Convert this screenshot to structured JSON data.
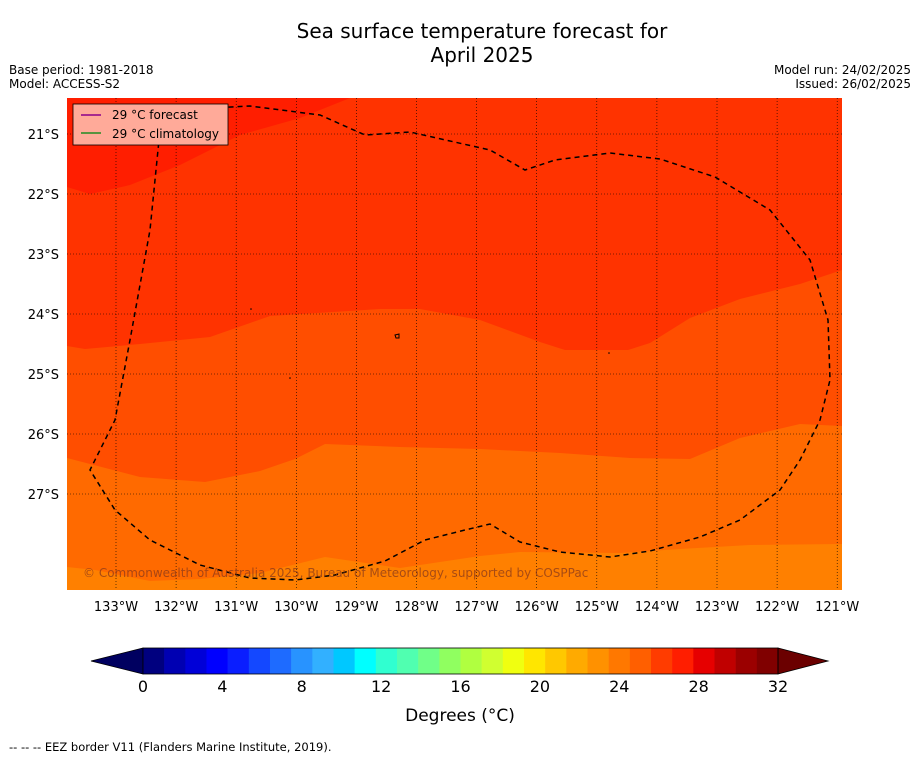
{
  "header": {
    "title_line1": "Sea surface temperature forecast for",
    "title_line2": "April 2025",
    "base_period": "Base period: 1981-2018",
    "model": "Model: ACCESS-S2",
    "model_run": "Model run: 24/02/2025",
    "issued": "Issued: 26/02/2025"
  },
  "map": {
    "lon_labels": [
      "133°W",
      "132°W",
      "131°W",
      "130°W",
      "129°W",
      "128°W",
      "127°W",
      "126°W",
      "125°W",
      "124°W",
      "123°W",
      "122°W",
      "121°W"
    ],
    "lat_labels": [
      "21°S",
      "22°S",
      "23°S",
      "24°S",
      "25°S",
      "26°S",
      "27°S"
    ],
    "legend": {
      "forecast_label": "29 °C  forecast",
      "climatology_label": "29 °C  climatology",
      "forecast_color": "#8b008b",
      "climatology_color": "#228b22"
    },
    "copyright": "© Commonwealth of Australia 2025, Bureau of Meteorology, supported by COSPPac",
    "band_colors": [
      "#ff1e00",
      "#ff3300",
      "#ff4e00",
      "#ff6a00",
      "#ff8000"
    ]
  },
  "colorbar": {
    "tick_labels": [
      "0",
      "4",
      "8",
      "12",
      "16",
      "20",
      "24",
      "28",
      "32"
    ],
    "label": "Degrees (°C)",
    "colors": [
      "#00007f",
      "#0000b2",
      "#0000d8",
      "#0000ff",
      "#0a1eff",
      "#1448ff",
      "#1e6bff",
      "#2893ff",
      "#32b0ff",
      "#00c8ff",
      "#00ffff",
      "#30ffd0",
      "#50ffb0",
      "#70ff88",
      "#90ff60",
      "#b0ff40",
      "#d0ff30",
      "#f0ff10",
      "#ffe600",
      "#ffc800",
      "#ffaa00",
      "#ff9100",
      "#ff7800",
      "#ff5f00",
      "#ff3c00",
      "#ff1e00",
      "#e60000",
      "#c00000",
      "#9b0000",
      "#800000"
    ]
  },
  "footnote": "-- -- -- EEZ border V11 (Flanders Marine Institute, 2019)."
}
